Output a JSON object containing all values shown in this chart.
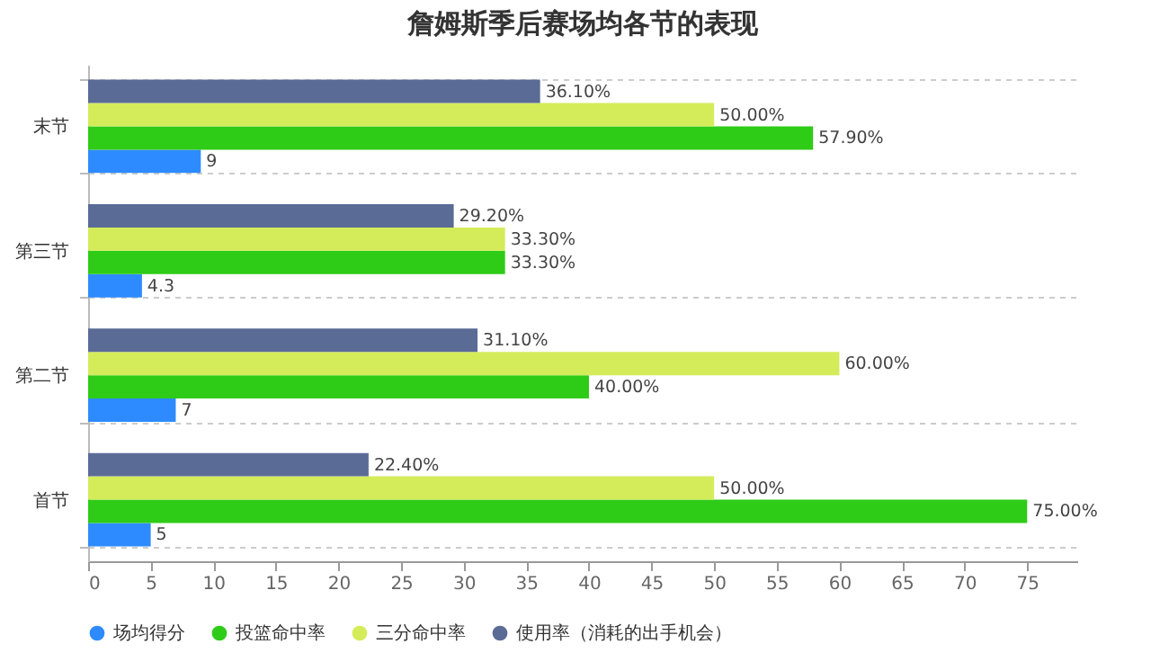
{
  "chart_data": {
    "type": "bar",
    "orientation": "horizontal",
    "title": "詹姆斯季后赛场均各节的表现",
    "categories": [
      "末节",
      "第三节",
      "第二节",
      "首节"
    ],
    "series": [
      {
        "name": "场均得分",
        "color": "#2e8bff",
        "values": [
          9,
          4.3,
          7,
          5
        ],
        "value_labels": [
          "9",
          "4.3",
          "7",
          "5"
        ]
      },
      {
        "name": "投篮命中率",
        "color": "#2ecc17",
        "values": [
          57.9,
          33.3,
          40,
          75
        ],
        "value_labels": [
          "57.90%",
          "33.30%",
          "40.00%",
          "75.00%"
        ]
      },
      {
        "name": "三分命中率",
        "color": "#d4ec5a",
        "values": [
          50,
          33.3,
          60,
          50
        ],
        "value_labels": [
          "50.00%",
          "33.30%",
          "60.00%",
          "50.00%"
        ]
      },
      {
        "name": "使用率（消耗的出手机会）",
        "color": "#5a6b96",
        "values": [
          36.1,
          29.2,
          31.1,
          22.4
        ],
        "value_labels": [
          "36.10%",
          "29.20%",
          "31.10%",
          "22.40%"
        ]
      }
    ],
    "xlim": [
      0,
      79
    ],
    "xticks": [
      0,
      5,
      10,
      15,
      20,
      25,
      30,
      35,
      40,
      45,
      50,
      55,
      60,
      65,
      70,
      75
    ],
    "grid": "y",
    "legend": "bottom"
  }
}
